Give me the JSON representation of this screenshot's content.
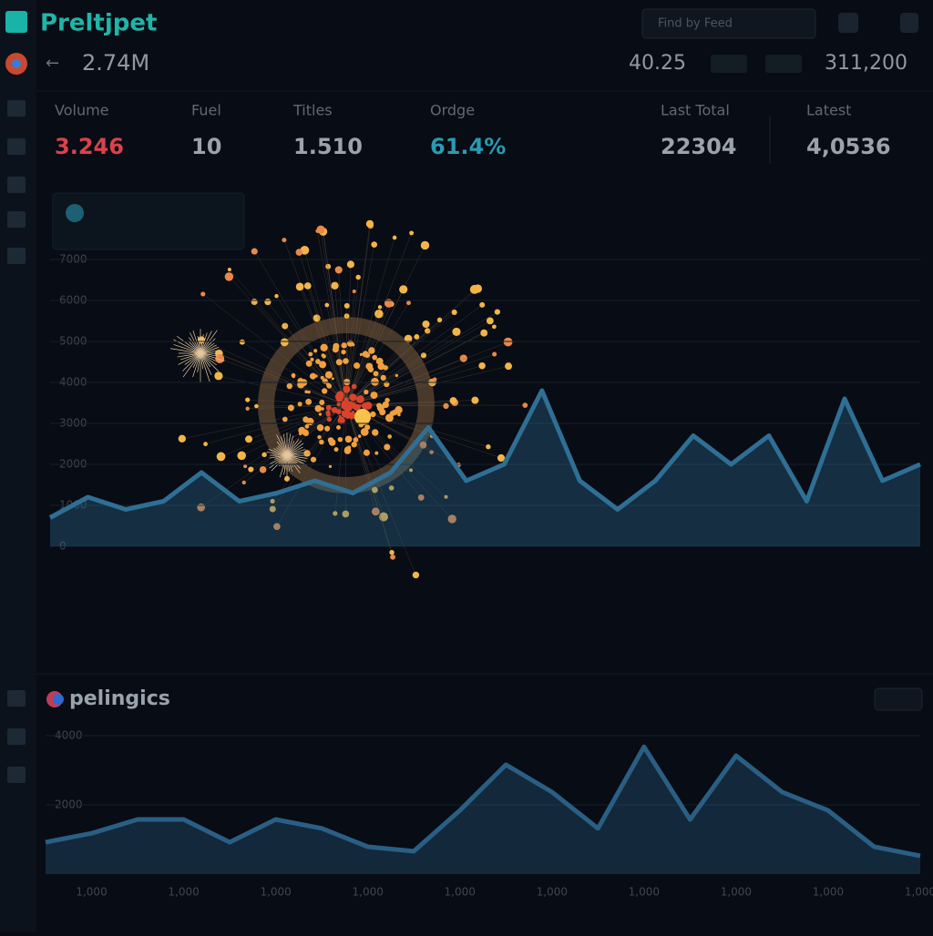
{
  "header": {
    "title": "Preltjpet",
    "search": "Find by Feed",
    "value": "2.74M",
    "stat_a": "40.25",
    "stat_b": "311,200"
  },
  "kpis": [
    {
      "label": "Volume",
      "value": "3.246",
      "color": "#d9424e"
    },
    {
      "label": "Fuel",
      "value": "10",
      "color": "#9aa3ad"
    },
    {
      "label": "Titles",
      "value": "1.510",
      "color": "#9aa3ad"
    },
    {
      "label": "Ordge",
      "value": "61.4%",
      "color": "#2a9bb0"
    },
    {
      "label": "Last Total",
      "value": "22304",
      "color": "#9aa3ad"
    },
    {
      "label": "Latest",
      "value": "4,0536",
      "color": "#9aa3ad"
    }
  ],
  "chart_data": [
    {
      "type": "area",
      "color": "#2f6f95",
      "grid": true,
      "categories": [
        null,
        null,
        null,
        null,
        null,
        null,
        null,
        null,
        null,
        null,
        null,
        null,
        null,
        null,
        null,
        null,
        null,
        null,
        null,
        null,
        null,
        null,
        null,
        null
      ],
      "values": [
        700,
        1200,
        900,
        1100,
        1800,
        1100,
        1300,
        1600,
        1300,
        1800,
        2900,
        1600,
        2000,
        3800,
        1600,
        900,
        1600,
        2700,
        2000,
        2700,
        1100,
        3600,
        1600,
        2000
      ],
      "ylim": [
        0,
        7000
      ],
      "yticks": [
        0,
        1000,
        2000,
        3000,
        4000,
        5000,
        6000,
        7000
      ]
    },
    {
      "type": "area",
      "title": "pelingics",
      "color": "#2a5f85",
      "grid": true,
      "categories": [
        null,
        "1,000",
        null,
        "1,000",
        null,
        "1,000",
        null,
        "1,000",
        null,
        "1,000",
        null,
        "1,000",
        null,
        "1,000",
        null,
        "1,000",
        null,
        "1,000",
        null,
        "1,000"
      ],
      "values": [
        920,
        1180,
        1580,
        1580,
        920,
        1580,
        1320,
        790,
        660,
        1840,
        3160,
        2370,
        1320,
        3680,
        1580,
        3420,
        2370,
        1840,
        790,
        530
      ],
      "ylim": [
        0,
        4000
      ],
      "yticks": [
        2000,
        4000
      ]
    }
  ]
}
